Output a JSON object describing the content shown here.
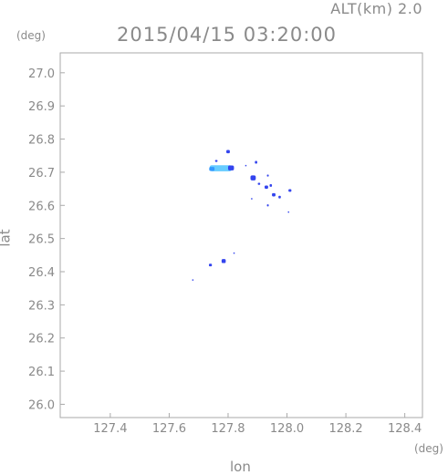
{
  "header": {
    "altitude_label": "ALT(km) 2.0",
    "timestamp": "2015/04/15 03:20:00"
  },
  "axes": {
    "x_label": "lon",
    "y_label": "lat",
    "x_unit": "(deg)",
    "y_unit": "(deg)"
  },
  "chart_data": {
    "type": "heatmap",
    "xlabel": "lon",
    "ylabel": "lat",
    "xlim": [
      127.23,
      128.46
    ],
    "ylim": [
      25.96,
      27.06
    ],
    "x_ticks": [
      "127.4",
      "127.6",
      "127.8",
      "128.0",
      "128.2",
      "128.4"
    ],
    "x_tick_values": [
      127.4,
      127.6,
      127.8,
      128.0,
      128.2,
      128.4
    ],
    "y_ticks": [
      "27.0",
      "26.9",
      "26.8",
      "26.7",
      "26.6",
      "26.5",
      "26.4",
      "26.3",
      "26.2",
      "26.1",
      "26.0"
    ],
    "y_tick_values": [
      27.0,
      26.9,
      26.8,
      26.7,
      26.6,
      26.5,
      26.4,
      26.3,
      26.2,
      26.1,
      26.0
    ],
    "grid": false,
    "colors": {
      "low": "#3344ee",
      "mid": "#3399ff",
      "high": "#66ccff"
    },
    "echoes": [
      {
        "lon": 127.775,
        "lat": 26.712,
        "w": 0.075,
        "h": 0.018,
        "level": "high"
      },
      {
        "lon": 127.745,
        "lat": 26.71,
        "w": 0.018,
        "h": 0.012,
        "level": "mid"
      },
      {
        "lon": 127.81,
        "lat": 26.713,
        "w": 0.02,
        "h": 0.015,
        "level": "low"
      },
      {
        "lon": 127.8,
        "lat": 26.762,
        "w": 0.012,
        "h": 0.01,
        "level": "low"
      },
      {
        "lon": 127.76,
        "lat": 26.734,
        "w": 0.008,
        "h": 0.006,
        "level": "low"
      },
      {
        "lon": 127.885,
        "lat": 26.683,
        "w": 0.018,
        "h": 0.015,
        "level": "low"
      },
      {
        "lon": 127.895,
        "lat": 26.73,
        "w": 0.008,
        "h": 0.008,
        "level": "low"
      },
      {
        "lon": 127.905,
        "lat": 26.665,
        "w": 0.008,
        "h": 0.006,
        "level": "low"
      },
      {
        "lon": 127.93,
        "lat": 26.655,
        "w": 0.012,
        "h": 0.01,
        "level": "low"
      },
      {
        "lon": 127.945,
        "lat": 26.66,
        "w": 0.008,
        "h": 0.008,
        "level": "low"
      },
      {
        "lon": 127.955,
        "lat": 26.632,
        "w": 0.012,
        "h": 0.01,
        "level": "low"
      },
      {
        "lon": 127.935,
        "lat": 26.69,
        "w": 0.006,
        "h": 0.006,
        "level": "low"
      },
      {
        "lon": 127.975,
        "lat": 26.625,
        "w": 0.008,
        "h": 0.008,
        "level": "low"
      },
      {
        "lon": 128.01,
        "lat": 26.645,
        "w": 0.01,
        "h": 0.008,
        "level": "low"
      },
      {
        "lon": 127.935,
        "lat": 26.6,
        "w": 0.006,
        "h": 0.006,
        "level": "low"
      },
      {
        "lon": 128.005,
        "lat": 26.58,
        "w": 0.004,
        "h": 0.004,
        "level": "low"
      },
      {
        "lon": 127.785,
        "lat": 26.432,
        "w": 0.014,
        "h": 0.012,
        "level": "low"
      },
      {
        "lon": 127.74,
        "lat": 26.42,
        "w": 0.01,
        "h": 0.008,
        "level": "low"
      },
      {
        "lon": 127.82,
        "lat": 26.456,
        "w": 0.004,
        "h": 0.004,
        "level": "low"
      },
      {
        "lon": 127.68,
        "lat": 26.375,
        "w": 0.004,
        "h": 0.004,
        "level": "low"
      },
      {
        "lon": 127.86,
        "lat": 26.72,
        "w": 0.004,
        "h": 0.004,
        "level": "low"
      },
      {
        "lon": 127.88,
        "lat": 26.62,
        "w": 0.004,
        "h": 0.004,
        "level": "low"
      }
    ]
  }
}
